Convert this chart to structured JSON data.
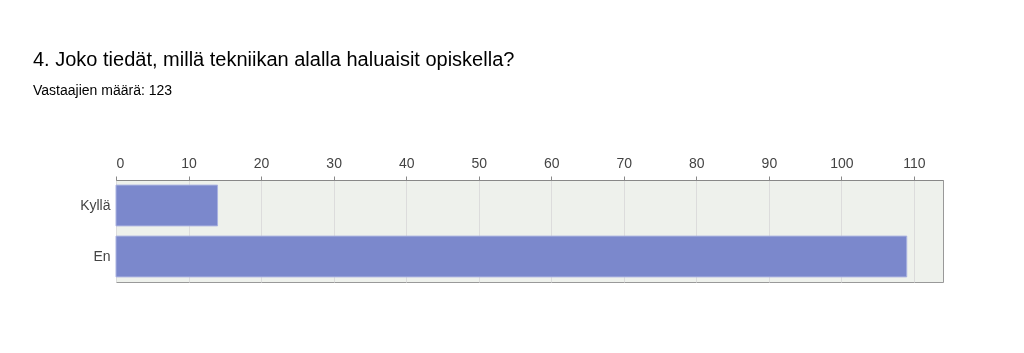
{
  "chart_data": {
    "type": "bar",
    "orientation": "horizontal",
    "title": "4. Joko tiedät, millä tekniikan alalla haluaisit opiskella?",
    "subtitle": "Vastaajien määrä: 123",
    "categories": [
      "Kyllä",
      "En"
    ],
    "values": [
      14,
      109
    ],
    "color": "#7b88cc",
    "xlim": [
      0,
      114
    ],
    "xticks": [
      0,
      10,
      20,
      30,
      40,
      50,
      60,
      70,
      80,
      90,
      100,
      110
    ],
    "grid": "x"
  }
}
